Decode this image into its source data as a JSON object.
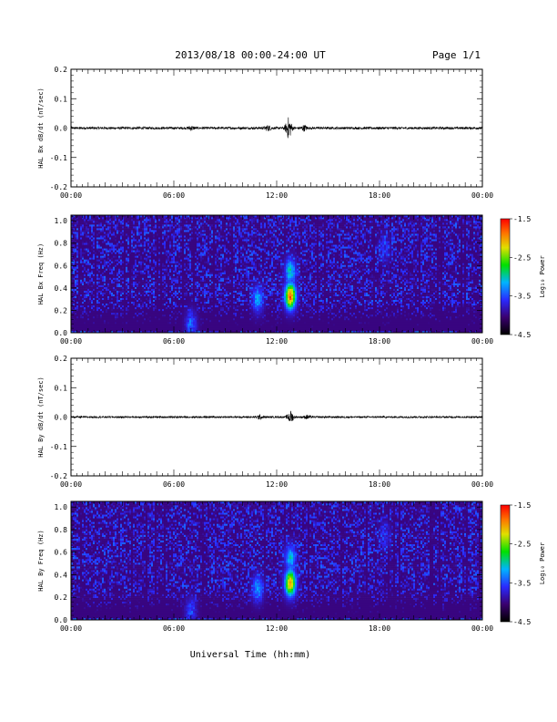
{
  "header": {
    "title": "2013/08/18  00:00-24:00 UT",
    "page": "Page 1/1"
  },
  "xaxis": {
    "label": "Universal Time (hh:mm)",
    "tick_labels": [
      "00:00",
      "06:00",
      "12:00",
      "18:00",
      "00:00"
    ]
  },
  "colorbar": {
    "label": "Log₁₀ Power",
    "tick_labels": [
      "-1.5",
      "-2.5",
      "-3.5",
      "-4.5"
    ],
    "range": [
      -4.5,
      -1.5
    ]
  },
  "chart_data": [
    {
      "type": "line",
      "ylabel": "HAL Bx dB/dt (nT/sec)",
      "xlim": [
        0,
        24
      ],
      "ylim": [
        -0.2,
        0.2
      ],
      "ytick_labels": [
        "0.2",
        "0.1",
        "0.0",
        "-0.1",
        "-0.2"
      ],
      "yticks": [
        0.2,
        0.1,
        0.0,
        -0.1,
        -0.2
      ],
      "baseline_amplitude": 0.004,
      "bursts": [
        {
          "t": 12.7,
          "amplitude": 0.035
        },
        {
          "t": 11.5,
          "amplitude": 0.008
        },
        {
          "t": 13.6,
          "amplitude": 0.008
        },
        {
          "t": 7.0,
          "amplitude": 0.006
        }
      ]
    },
    {
      "type": "heatmap",
      "ylabel": "HAL Bx Freq (Hz)",
      "xlim": [
        0,
        24
      ],
      "ylim": [
        0,
        1.05
      ],
      "ytick_labels": [
        "1.0",
        "0.8",
        "0.6",
        "0.4",
        "0.2",
        "0.0"
      ],
      "yticks": [
        1.0,
        0.8,
        0.6,
        0.4,
        0.2,
        0.0
      ],
      "colorscale": "log10 power",
      "zlim": [
        -4.5,
        -1.5
      ],
      "background_log_power": -4.0,
      "features": [
        {
          "t": 12.8,
          "f": 0.33,
          "log_power": -1.8
        },
        {
          "t": 12.8,
          "f": 0.55,
          "log_power": -3.0
        },
        {
          "t": 10.9,
          "f": 0.3,
          "log_power": -3.2
        },
        {
          "t": 7.0,
          "f": 0.08,
          "log_power": -3.4
        },
        {
          "t": 18.3,
          "f": 0.75,
          "log_power": -3.6
        }
      ]
    },
    {
      "type": "line",
      "ylabel": "HAL By dB/dt (nT/sec)",
      "xlim": [
        0,
        24
      ],
      "ylim": [
        -0.2,
        0.2
      ],
      "ytick_labels": [
        "0.2",
        "0.1",
        "0.0",
        "-0.1",
        "-0.2"
      ],
      "yticks": [
        0.2,
        0.1,
        0.0,
        -0.1,
        -0.2
      ],
      "baseline_amplitude": 0.003,
      "bursts": [
        {
          "t": 12.8,
          "amplitude": 0.02
        },
        {
          "t": 11.0,
          "amplitude": 0.006
        },
        {
          "t": 13.8,
          "amplitude": 0.006
        }
      ]
    },
    {
      "type": "heatmap",
      "ylabel": "HAL By Freq (Hz)",
      "xlim": [
        0,
        24
      ],
      "ylim": [
        0,
        1.05
      ],
      "ytick_labels": [
        "1.0",
        "0.8",
        "0.6",
        "0.4",
        "0.2",
        "0.0"
      ],
      "yticks": [
        1.0,
        0.8,
        0.6,
        0.4,
        0.2,
        0.0
      ],
      "colorscale": "log10 power",
      "zlim": [
        -4.5,
        -1.5
      ],
      "background_log_power": -4.0,
      "features": [
        {
          "t": 12.8,
          "f": 0.33,
          "log_power": -2.0
        },
        {
          "t": 12.8,
          "f": 0.55,
          "log_power": -3.1
        },
        {
          "t": 10.9,
          "f": 0.28,
          "log_power": -3.2
        },
        {
          "t": 7.0,
          "f": 0.08,
          "log_power": -3.5
        },
        {
          "t": 18.3,
          "f": 0.75,
          "log_power": -3.6
        }
      ]
    }
  ]
}
